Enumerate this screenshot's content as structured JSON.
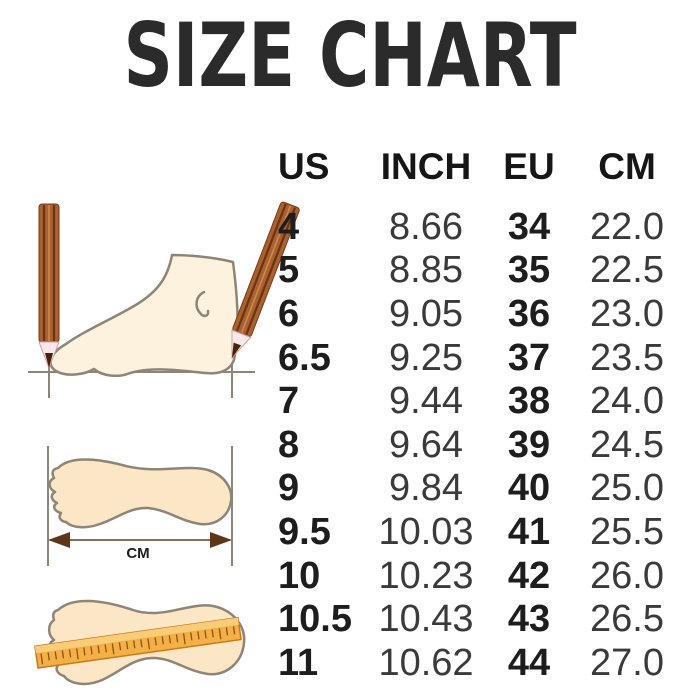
{
  "title": "SIZE CHART",
  "labels": {
    "cm_unit": "CM"
  },
  "chart_data": {
    "type": "table",
    "title": "SIZE CHART",
    "columns": [
      "US",
      "INCH",
      "EU",
      "CM"
    ],
    "rows": [
      [
        "4",
        "8.66",
        "34",
        "22.0"
      ],
      [
        "5",
        "8.85",
        "35",
        "22.5"
      ],
      [
        "6",
        "9.05",
        "36",
        "23.0"
      ],
      [
        "6.5",
        "9.25",
        "37",
        "23.5"
      ],
      [
        "7",
        "9.44",
        "38",
        "24.0"
      ],
      [
        "8",
        "9.64",
        "39",
        "24.5"
      ],
      [
        "9",
        "9.84",
        "40",
        "25.0"
      ],
      [
        "9.5",
        "10.03",
        "41",
        "25.5"
      ],
      [
        "10",
        "10.23",
        "42",
        "26.0"
      ],
      [
        "10.5",
        "10.43",
        "43",
        "26.5"
      ],
      [
        "11",
        "10.62",
        "44",
        "27.0"
      ]
    ]
  },
  "icons": {
    "foot_side": "foot-side-with-pencils-icon",
    "footprint_cm": "footprint-cm-arrow-icon",
    "footprint_ruler": "footprint-ruler-icon"
  },
  "colors": {
    "background": "#ffffff",
    "title_text": "#2b2b2b",
    "bold_column_text": "#1d1d1d",
    "regular_column_text": "#3a3a3a",
    "foot_fill": "#fdf2dd",
    "footprint_fill": "#fbe6c6",
    "illustration_outline": "#8d8577",
    "pencil_body": "#a9612f",
    "pencil_stripe": "#6b3312",
    "pencil_wood": "#f8e8ea",
    "arrow_brown": "#5d3517",
    "ruler_orange": "#f5b045",
    "ruler_top": "#f9cd77"
  }
}
